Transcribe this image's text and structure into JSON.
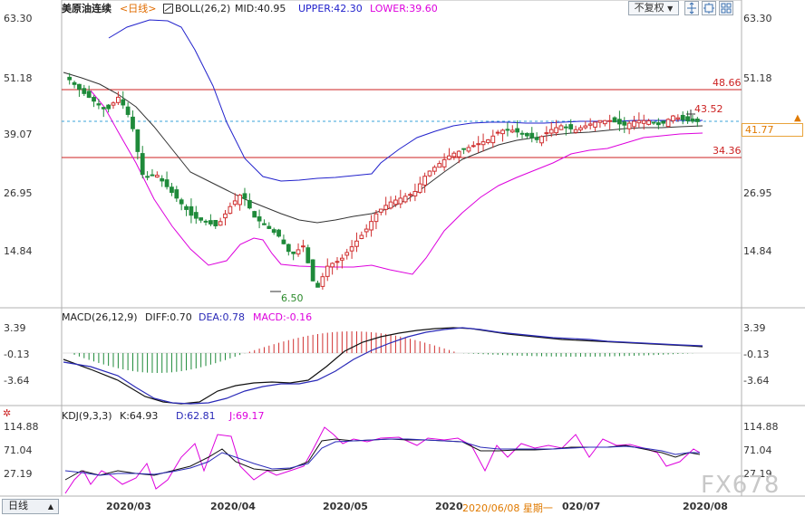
{
  "title_bar": {
    "instrument": "美原油连续",
    "period": "<日线>",
    "indicator": "BOLL(26,2)",
    "mid": "MID:40.95",
    "upper": "UPPER:42.30",
    "lower": "LOWER:39.60",
    "restore_option": "不复权",
    "colors": {
      "mid": "#333333",
      "upper": "#2222cc",
      "lower": "#dd00dd",
      "period": "#e06c00"
    }
  },
  "price_axis": {
    "left_ticks": [
      "63.30",
      "51.18",
      "39.07",
      "26.95",
      "14.84"
    ],
    "right_ticks": [
      "63.30",
      "51.18",
      "39.07",
      "26.95",
      "14.84"
    ]
  },
  "price_annotations": {
    "line_high": "48.66",
    "line_low": "34.36",
    "recent_high": "43.52",
    "period_low": "6.50",
    "current_price": "41.77"
  },
  "macd_panel": {
    "indicator": "MACD(26,12,9)",
    "diff": "DIFF:0.70",
    "dea": "DEA:0.78",
    "macd": "MACD:-0.16",
    "ticks": [
      "3.39",
      "-0.13",
      "-3.64"
    ]
  },
  "kdj_panel": {
    "indicator": "KDJ(9,3,3)",
    "k": "K:64.93",
    "d": "D:62.81",
    "j": "J:69.17",
    "ticks": [
      "114.88",
      "71.04",
      "27.19"
    ]
  },
  "x_axis": {
    "labels": [
      "2020/03",
      "2020/04",
      "2020/05",
      "2020",
      "2020/06/08 星期一",
      "020/07",
      "2020/08"
    ]
  },
  "bottom_bar": {
    "period_button": "日线"
  },
  "watermark": "FX678",
  "chart_data": {
    "type": "candlestick",
    "title": "美原油连续 <日线>",
    "ylim": [
      6.5,
      63.3
    ],
    "price_path": [
      50.5,
      48,
      46,
      44,
      47,
      42,
      30,
      31,
      28,
      25,
      22,
      21,
      20,
      24,
      27,
      22,
      20,
      18,
      14,
      16,
      6.5,
      12,
      13,
      16,
      19,
      23,
      25,
      26,
      27,
      31,
      33,
      35,
      36,
      37,
      38,
      40,
      40,
      39,
      38,
      40,
      41,
      40,
      41,
      42,
      42,
      41,
      42,
      42,
      41,
      43,
      42,
      41.8
    ],
    "bollinger": {
      "upper": [
        63,
        62,
        54,
        40,
        32,
        32,
        33,
        38,
        41,
        42,
        42,
        42.3
      ],
      "mid": [
        52,
        47,
        36,
        28,
        22,
        21,
        25,
        30,
        35,
        39,
        40.5,
        40.95
      ],
      "lower": [
        46,
        31,
        16,
        13,
        16,
        14,
        15,
        22,
        33,
        37,
        39,
        39.6
      ]
    },
    "horizontal_lines": [
      48.66,
      34.36
    ],
    "current_price": 41.77
  }
}
